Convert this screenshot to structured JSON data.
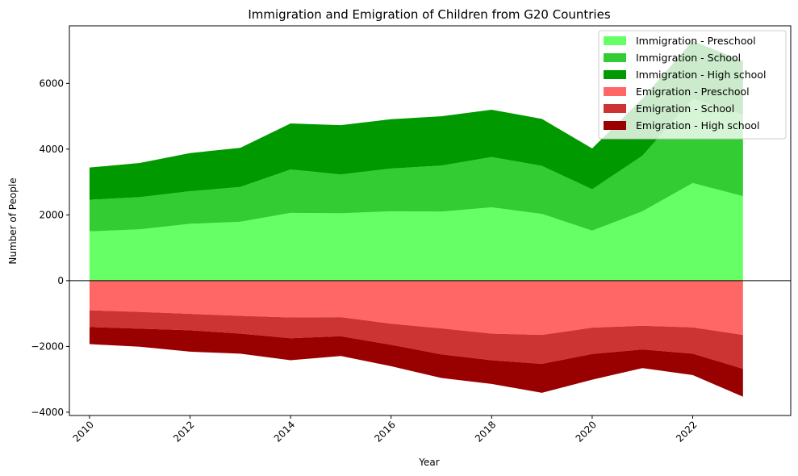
{
  "chart_data": {
    "type": "area",
    "title": "Immigration and Emigration of Children from G20 Countries",
    "xlabel": "Year",
    "ylabel": "Number of People",
    "x": [
      2010,
      2011,
      2012,
      2013,
      2014,
      2015,
      2016,
      2017,
      2018,
      2019,
      2020,
      2021,
      2022,
      2023
    ],
    "xticks": [
      2010,
      2012,
      2014,
      2016,
      2018,
      2020,
      2022
    ],
    "yticks": [
      -4000,
      -2000,
      0,
      2000,
      4000,
      6000
    ],
    "xlim": [
      2009.6,
      2023.95
    ],
    "ylim": [
      -4100,
      7750
    ],
    "legend_position": "top-right",
    "series": [
      {
        "name": "Immigration - Preschool",
        "group": "immigration",
        "color": "#66ff66",
        "values": [
          1500,
          1560,
          1730,
          1790,
          2060,
          2050,
          2110,
          2100,
          2230,
          2030,
          1520,
          2110,
          2970,
          2570
        ]
      },
      {
        "name": "Immigration - School",
        "group": "immigration",
        "color": "#33cc33",
        "values": [
          960,
          980,
          990,
          1060,
          1320,
          1180,
          1300,
          1400,
          1530,
          1460,
          1260,
          1690,
          2560,
          2480
        ]
      },
      {
        "name": "Immigration - High school",
        "group": "immigration",
        "color": "#009900",
        "values": [
          980,
          1040,
          1160,
          1190,
          1400,
          1500,
          1500,
          1500,
          1440,
          1430,
          1240,
          1740,
          1760,
          1630
        ]
      },
      {
        "name": "Emigration - Preschool",
        "group": "emigration",
        "color": "#ff6666",
        "values": [
          900,
          950,
          1010,
          1070,
          1120,
          1110,
          1310,
          1450,
          1610,
          1650,
          1430,
          1370,
          1420,
          1650
        ]
      },
      {
        "name": "Emigration - School",
        "group": "emigration",
        "color": "#cc3333",
        "values": [
          510,
          510,
          500,
          540,
          630,
          580,
          640,
          790,
          810,
          880,
          800,
          720,
          800,
          1030
        ]
      },
      {
        "name": "Emigration - High school",
        "group": "emigration",
        "color": "#990000",
        "values": [
          520,
          550,
          650,
          610,
          670,
          600,
          650,
          720,
          720,
          880,
          780,
          570,
          650,
          850
        ]
      }
    ]
  }
}
